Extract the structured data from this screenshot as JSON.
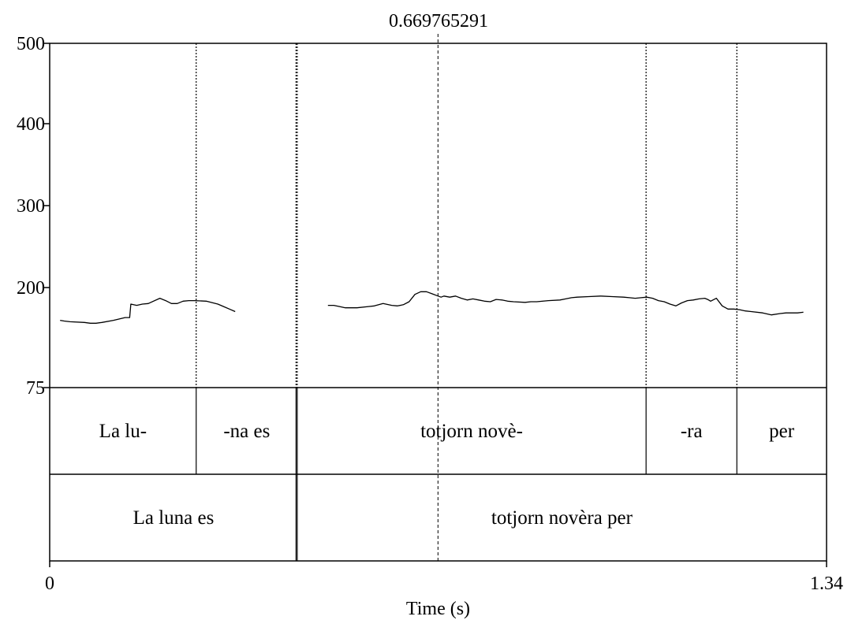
{
  "chart_data": {
    "type": "line",
    "cursor_label": "0.669765291",
    "cursor_time": 0.669765291,
    "xlabel": "Time (s)",
    "xlim": [
      0,
      1.34
    ],
    "x_tick_labels": [
      "0",
      "1.34"
    ],
    "ylabel": "",
    "ylim": [
      75,
      500
    ],
    "y_ticks": [
      75,
      200,
      300,
      400,
      500
    ],
    "y_tick_labels": [
      "75",
      "200",
      "300",
      "400",
      "500"
    ],
    "series": [
      {
        "segments": [
          [
            [
              0.018,
              145
            ],
            [
              0.025,
              144
            ],
            [
              0.035,
              143
            ],
            [
              0.06,
              142
            ],
            [
              0.07,
              141
            ],
            [
              0.08,
              141
            ],
            [
              0.09,
              142
            ],
            [
              0.11,
              145
            ],
            [
              0.13,
              149
            ],
            [
              0.138,
              149
            ],
            [
              0.14,
              170
            ],
            [
              0.15,
              168
            ],
            [
              0.16,
              170
            ],
            [
              0.17,
              171
            ],
            [
              0.19,
              180
            ],
            [
              0.2,
              176
            ],
            [
              0.21,
              171
            ],
            [
              0.22,
              171
            ],
            [
              0.23,
              175
            ],
            [
              0.24,
              176
            ],
            [
              0.25,
              176
            ],
            [
              0.27,
              175
            ],
            [
              0.29,
              170
            ],
            [
              0.3,
              166
            ],
            [
              0.31,
              162
            ],
            [
              0.32,
              158
            ]
          ],
          [
            [
              0.48,
              168
            ],
            [
              0.49,
              168
            ],
            [
              0.5,
              166
            ],
            [
              0.51,
              164
            ],
            [
              0.53,
              164
            ],
            [
              0.55,
              166
            ],
            [
              0.56,
              167
            ],
            [
              0.575,
              171
            ],
            [
              0.59,
              168
            ],
            [
              0.6,
              167
            ],
            [
              0.61,
              169
            ],
            [
              0.62,
              174
            ],
            [
              0.63,
              187
            ],
            [
              0.64,
              192
            ],
            [
              0.65,
              192
            ],
            [
              0.66,
              188
            ],
            [
              0.67,
              184
            ],
            [
              0.675,
              182
            ],
            [
              0.68,
              184
            ],
            [
              0.69,
              182
            ],
            [
              0.7,
              184
            ],
            [
              0.71,
              180
            ],
            [
              0.72,
              177
            ],
            [
              0.73,
              179
            ],
            [
              0.74,
              177
            ],
            [
              0.75,
              175
            ],
            [
              0.76,
              174
            ],
            [
              0.77,
              178
            ],
            [
              0.78,
              177
            ],
            [
              0.79,
              175
            ],
            [
              0.8,
              174
            ],
            [
              0.82,
              173
            ],
            [
              0.83,
              174
            ],
            [
              0.84,
              174
            ],
            [
              0.86,
              176
            ],
            [
              0.88,
              177
            ],
            [
              0.89,
              179
            ],
            [
              0.9,
              181
            ],
            [
              0.91,
              182
            ],
            [
              0.93,
              183
            ],
            [
              0.95,
              184
            ],
            [
              0.97,
              183
            ],
            [
              0.99,
              182
            ],
            [
              1.0,
              181
            ],
            [
              1.01,
              180
            ],
            [
              1.02,
              181
            ],
            [
              1.03,
              182
            ],
            [
              1.04,
              180
            ],
            [
              1.05,
              176
            ],
            [
              1.06,
              174
            ],
            [
              1.07,
              170
            ],
            [
              1.08,
              167
            ],
            [
              1.09,
              172
            ],
            [
              1.1,
              176
            ],
            [
              1.11,
              177
            ],
            [
              1.12,
              179
            ],
            [
              1.13,
              180
            ],
            [
              1.135,
              178
            ],
            [
              1.14,
              175
            ],
            [
              1.15,
              180
            ],
            [
              1.16,
              167
            ],
            [
              1.17,
              162
            ],
            [
              1.18,
              162
            ],
            [
              1.19,
              161
            ],
            [
              1.2,
              159
            ],
            [
              1.21,
              158
            ],
            [
              1.23,
              156
            ],
            [
              1.245,
              153
            ],
            [
              1.26,
              155
            ],
            [
              1.27,
              156
            ],
            [
              1.29,
              156
            ],
            [
              1.3,
              157
            ]
          ]
        ]
      }
    ],
    "tiers": [
      {
        "intervals": [
          {
            "start": 0,
            "end": 0.2527,
            "label": "La lu-",
            "end_style": "solid"
          },
          {
            "start": 0.2527,
            "end": 0.427,
            "label": "-na es",
            "end_style": "solid"
          },
          {
            "start": 0.427,
            "end": 1.0287,
            "label": "totjorn novè-",
            "end_style": "solid"
          },
          {
            "start": 1.0287,
            "end": 1.1853,
            "label": "-ra",
            "end_style": "solid"
          },
          {
            "start": 1.1853,
            "end": 1.34,
            "label": "per",
            "end_style": "none"
          }
        ]
      },
      {
        "intervals": [
          {
            "start": 0,
            "end": 0.427,
            "label": "La luna es",
            "end_style": "solid"
          },
          {
            "start": 0.427,
            "end": 1.34,
            "label": "totjorn novèra per",
            "end_style": "none"
          }
        ]
      }
    ]
  }
}
